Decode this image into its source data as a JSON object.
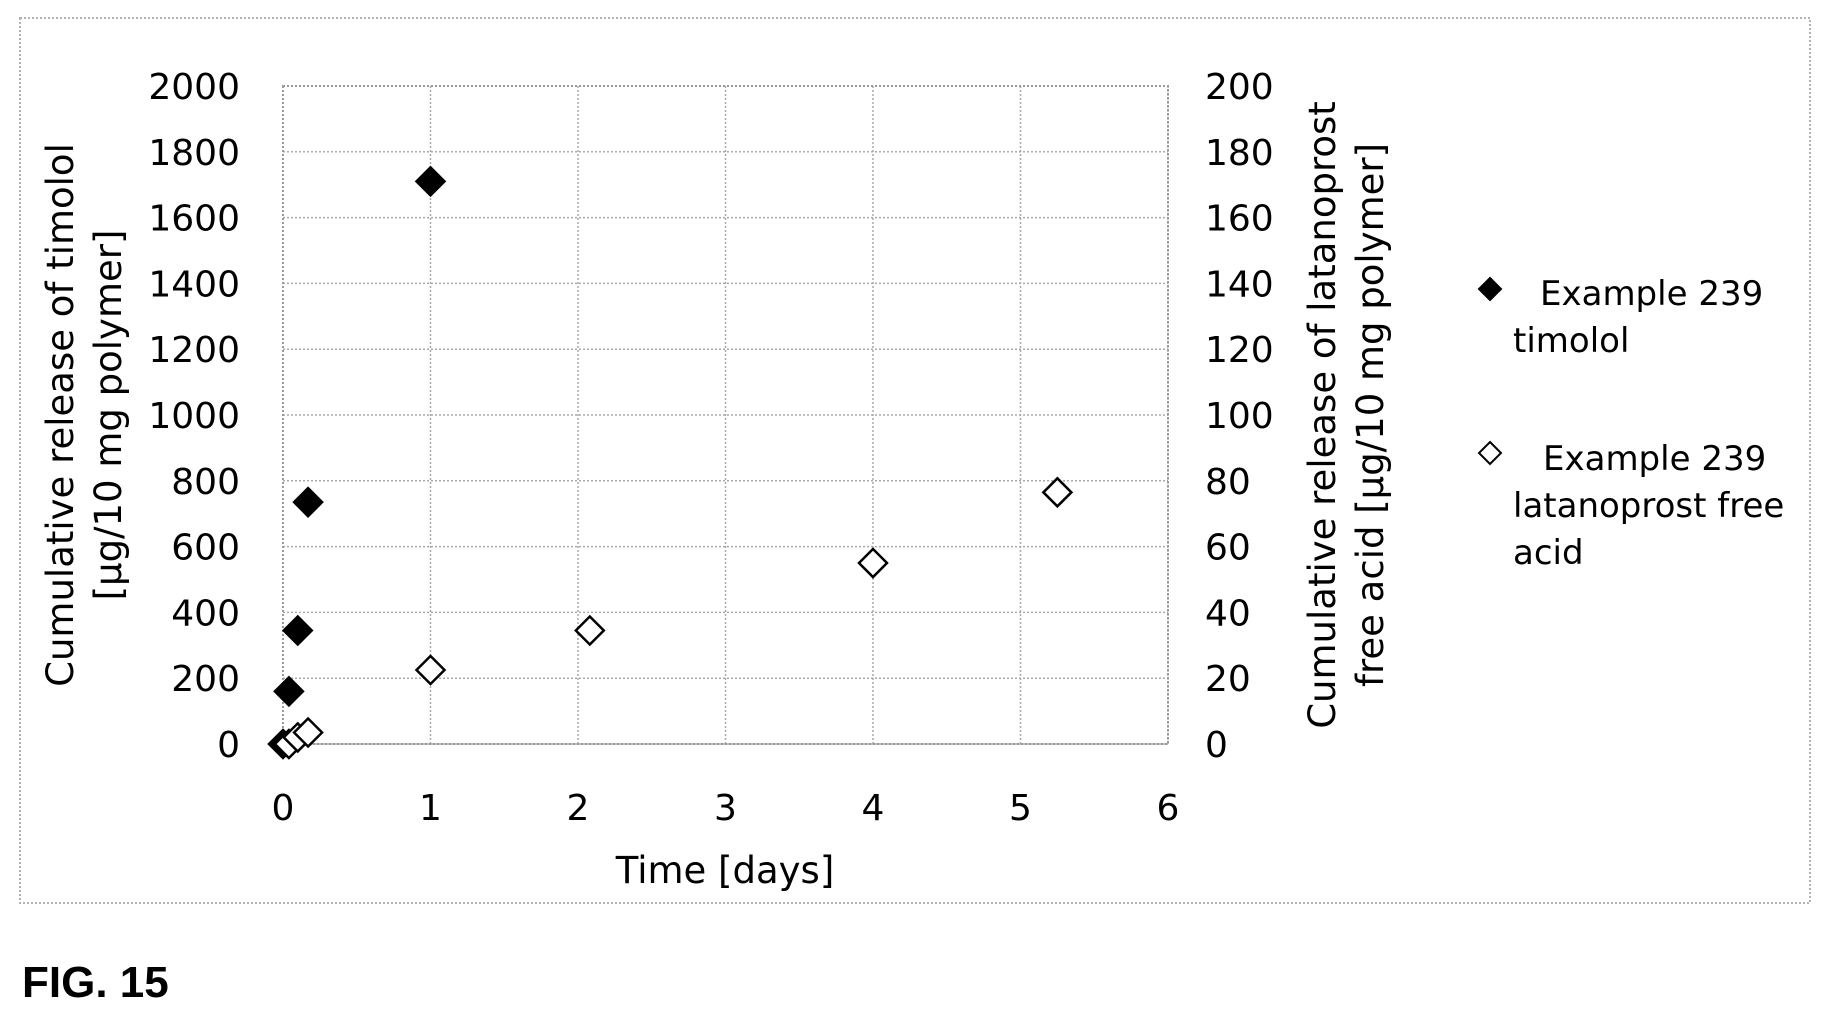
{
  "figure_caption": "FIG. 15",
  "chart_data": {
    "type": "scatter",
    "title": "",
    "xlabel": "Time [days]",
    "ylabel_left": [
      "Cumulative release of timolol",
      "[μg/10 mg polymer]"
    ],
    "ylabel_right": [
      "Cumulative release of latanoprost",
      "free acid [μg/10 mg polymer]"
    ],
    "xlim": [
      0,
      6
    ],
    "ylim_left": [
      0,
      2000
    ],
    "ylim_right": [
      0,
      200
    ],
    "x_ticks": [
      "0",
      "1",
      "2",
      "3",
      "4",
      "5",
      "6"
    ],
    "y_ticks_left": [
      "0",
      "200",
      "400",
      "600",
      "800",
      "1000",
      "1200",
      "1400",
      "1600",
      "1800",
      "2000"
    ],
    "y_ticks_right": [
      "0",
      "20",
      "40",
      "60",
      "80",
      "100",
      "120",
      "140",
      "160",
      "180",
      "200"
    ],
    "grid": true,
    "legend_position": "right",
    "series": [
      {
        "name_lines": [
          "Example 239",
          "timolol"
        ],
        "axis": "left",
        "marker": "filled-diamond",
        "color": "#000000",
        "points": [
          [
            0.0,
            0
          ],
          [
            0.04,
            160
          ],
          [
            0.1,
            345
          ],
          [
            0.17,
            735
          ],
          [
            1.0,
            1710
          ]
        ]
      },
      {
        "name_lines": [
          "Example 239",
          "latanoprost free",
          "acid"
        ],
        "axis": "right",
        "marker": "open-diamond",
        "color": "#000000",
        "points": [
          [
            0.04,
            0
          ],
          [
            0.1,
            2
          ],
          [
            0.17,
            3.5
          ],
          [
            1.0,
            22.5
          ],
          [
            2.08,
            34.5
          ],
          [
            4.0,
            55
          ],
          [
            5.25,
            76.5
          ]
        ]
      }
    ]
  }
}
